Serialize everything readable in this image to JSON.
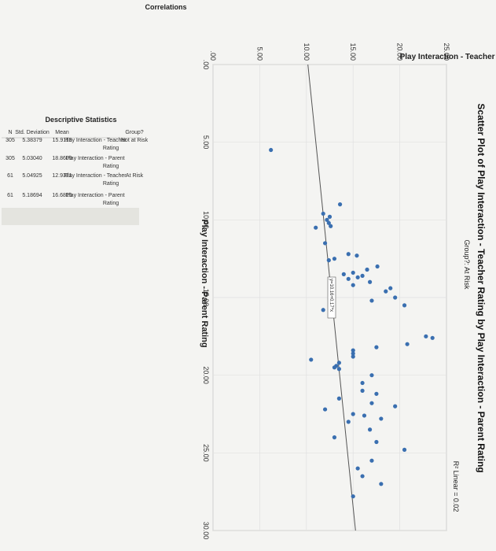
{
  "chart_data": {
    "type": "scatter",
    "title": "Scatter Plot of Play Interaction - Teacher Rating by Play Interaction - Parent Rating",
    "subtitle": "Group?: At Risk",
    "xlabel": "Play Interaction - Parent Rating",
    "ylabel": "Play Interaction - Teacher Rating",
    "xlim": [
      0,
      30
    ],
    "ylim": [
      0,
      25
    ],
    "x_ticks": [
      ".00",
      "5.00",
      "10.00",
      "15.00",
      "20.00",
      "25.00",
      "30.00"
    ],
    "y_ticks": [
      ".00",
      "5.00",
      "10.00",
      "15.00",
      "20.00",
      "25.00"
    ],
    "r2_label": "R² Linear = 0.02",
    "fit_equation": "y=10.16+0.17*x",
    "fit": {
      "intercept": 10.16,
      "slope": 0.17
    },
    "grid": true,
    "points": [
      {
        "x": 5.5,
        "y": 6.2
      },
      {
        "x": 9.0,
        "y": 13.6
      },
      {
        "x": 9.6,
        "y": 11.8
      },
      {
        "x": 9.8,
        "y": 12.5
      },
      {
        "x": 10.0,
        "y": 12.2
      },
      {
        "x": 10.2,
        "y": 12.4
      },
      {
        "x": 10.4,
        "y": 12.6
      },
      {
        "x": 10.5,
        "y": 11.0
      },
      {
        "x": 11.5,
        "y": 12.0
      },
      {
        "x": 12.2,
        "y": 14.5
      },
      {
        "x": 12.3,
        "y": 15.4
      },
      {
        "x": 12.5,
        "y": 13.0
      },
      {
        "x": 12.6,
        "y": 12.4
      },
      {
        "x": 13.0,
        "y": 17.6
      },
      {
        "x": 13.2,
        "y": 16.5
      },
      {
        "x": 13.4,
        "y": 15.0
      },
      {
        "x": 13.5,
        "y": 14.0
      },
      {
        "x": 13.6,
        "y": 16.0
      },
      {
        "x": 13.7,
        "y": 15.5
      },
      {
        "x": 13.8,
        "y": 14.5
      },
      {
        "x": 14.0,
        "y": 16.8
      },
      {
        "x": 14.2,
        "y": 15.0
      },
      {
        "x": 14.4,
        "y": 19.0
      },
      {
        "x": 14.6,
        "y": 18.5
      },
      {
        "x": 15.0,
        "y": 19.5
      },
      {
        "x": 15.2,
        "y": 17.0
      },
      {
        "x": 15.5,
        "y": 20.5
      },
      {
        "x": 15.8,
        "y": 11.8
      },
      {
        "x": 17.5,
        "y": 22.8
      },
      {
        "x": 17.6,
        "y": 23.5
      },
      {
        "x": 18.0,
        "y": 20.8
      },
      {
        "x": 18.2,
        "y": 17.5
      },
      {
        "x": 18.4,
        "y": 15.0
      },
      {
        "x": 18.6,
        "y": 15.0
      },
      {
        "x": 18.8,
        "y": 15.0
      },
      {
        "x": 19.0,
        "y": 10.5
      },
      {
        "x": 19.2,
        "y": 13.5
      },
      {
        "x": 19.4,
        "y": 13.2
      },
      {
        "x": 19.5,
        "y": 13.0
      },
      {
        "x": 19.6,
        "y": 13.5
      },
      {
        "x": 20.0,
        "y": 17.0
      },
      {
        "x": 20.5,
        "y": 16.0
      },
      {
        "x": 21.0,
        "y": 16.0
      },
      {
        "x": 21.2,
        "y": 17.5
      },
      {
        "x": 21.5,
        "y": 13.5
      },
      {
        "x": 21.8,
        "y": 17.0
      },
      {
        "x": 22.0,
        "y": 19.5
      },
      {
        "x": 22.2,
        "y": 12.0
      },
      {
        "x": 22.5,
        "y": 15.0
      },
      {
        "x": 22.6,
        "y": 16.2
      },
      {
        "x": 22.8,
        "y": 18.0
      },
      {
        "x": 23.0,
        "y": 14.5
      },
      {
        "x": 23.5,
        "y": 16.8
      },
      {
        "x": 24.0,
        "y": 13.0
      },
      {
        "x": 24.3,
        "y": 17.5
      },
      {
        "x": 24.8,
        "y": 20.5
      },
      {
        "x": 25.5,
        "y": 17.0
      },
      {
        "x": 26.0,
        "y": 15.5
      },
      {
        "x": 26.5,
        "y": 16.0
      },
      {
        "x": 27.0,
        "y": 18.0
      },
      {
        "x": 27.8,
        "y": 15.0
      }
    ]
  },
  "section_title": "Correlations",
  "descriptive": {
    "title": "Descriptive Statistics",
    "headers": [
      "Group?",
      "",
      "Mean",
      "Std. Deviation",
      "N"
    ],
    "rows": [
      {
        "group": "Not at Risk",
        "var1": "Play Interaction - Teacher",
        "var2": "Rating",
        "mean": "15.9119",
        "sd": "5.38379",
        "n": "305"
      },
      {
        "group": "",
        "var1": "Play Interaction - Parent",
        "var2": "Rating",
        "mean": "18.8609",
        "sd": "5.03040",
        "n": "305"
      },
      {
        "group": "At Risk",
        "var1": "Play Interaction - Teacher",
        "var2": "Rating",
        "mean": "12.9321",
        "sd": "5.04925",
        "n": "61"
      },
      {
        "group": "",
        "var1": "Play Interaction - Parent",
        "var2": "Rating",
        "mean": "16.6815",
        "sd": "5.18694",
        "n": "61"
      }
    ]
  },
  "colors": {
    "point": "#3a6fb0",
    "fit_line": "#555555",
    "grid": "#e0e0e0"
  }
}
